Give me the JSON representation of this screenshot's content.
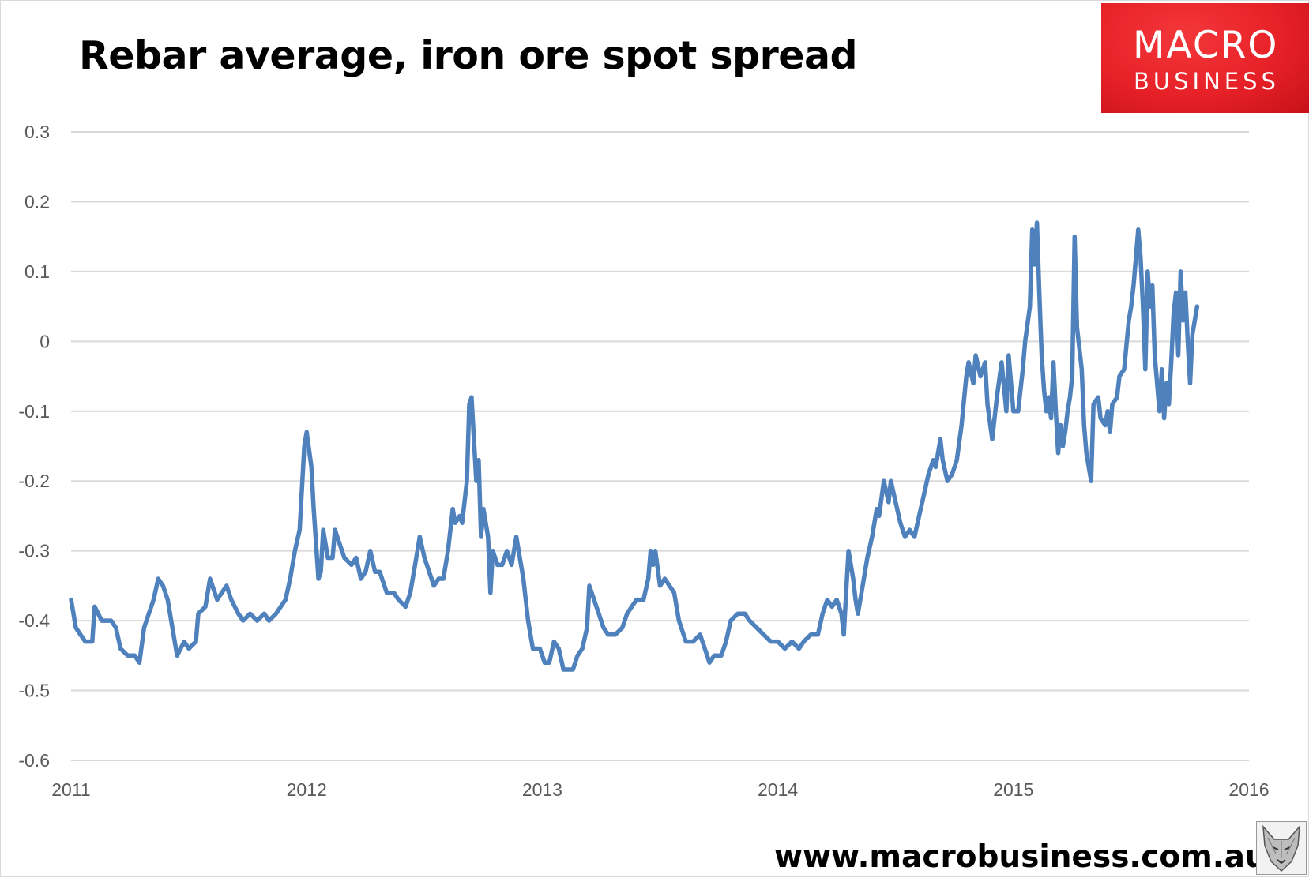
{
  "title": "Rebar average, iron ore spot spread",
  "logo": {
    "line1": "MACRO",
    "line2": "BUSINESS",
    "color": "#e62127"
  },
  "footer": {
    "url": "www.macrobusiness.com.au",
    "icon": "wolf-logo-icon"
  },
  "chart_data": {
    "type": "line",
    "title": "Rebar average, iron ore spot spread",
    "xlabel": "",
    "ylabel": "",
    "xlim": [
      2011,
      2016
    ],
    "ylim": [
      -0.6,
      0.3
    ],
    "x_ticks": [
      "2011",
      "2012",
      "2013",
      "2014",
      "2015",
      "2016"
    ],
    "y_ticks": [
      "0.3",
      "0.2",
      "0.1",
      "0",
      "-0.1",
      "-0.2",
      "-0.3",
      "-0.4",
      "-0.5",
      "-0.6"
    ],
    "grid": true,
    "legend": "none",
    "series_color": "#4f81bd",
    "series": [
      {
        "points": [
          [
            2011.0,
            -0.37
          ],
          [
            2011.02,
            -0.41
          ],
          [
            2011.04,
            -0.42
          ],
          [
            2011.06,
            -0.43
          ],
          [
            2011.09,
            -0.43
          ],
          [
            2011.1,
            -0.38
          ],
          [
            2011.13,
            -0.4
          ],
          [
            2011.17,
            -0.4
          ],
          [
            2011.19,
            -0.41
          ],
          [
            2011.21,
            -0.44
          ],
          [
            2011.24,
            -0.45
          ],
          [
            2011.27,
            -0.45
          ],
          [
            2011.29,
            -0.46
          ],
          [
            2011.31,
            -0.41
          ],
          [
            2011.33,
            -0.39
          ],
          [
            2011.35,
            -0.37
          ],
          [
            2011.37,
            -0.34
          ],
          [
            2011.39,
            -0.35
          ],
          [
            2011.41,
            -0.37
          ],
          [
            2011.43,
            -0.41
          ],
          [
            2011.45,
            -0.45
          ],
          [
            2011.48,
            -0.43
          ],
          [
            2011.5,
            -0.44
          ],
          [
            2011.53,
            -0.43
          ],
          [
            2011.54,
            -0.39
          ],
          [
            2011.57,
            -0.38
          ],
          [
            2011.59,
            -0.34
          ],
          [
            2011.62,
            -0.37
          ],
          [
            2011.64,
            -0.36
          ],
          [
            2011.66,
            -0.35
          ],
          [
            2011.68,
            -0.37
          ],
          [
            2011.71,
            -0.39
          ],
          [
            2011.73,
            -0.4
          ],
          [
            2011.76,
            -0.39
          ],
          [
            2011.79,
            -0.4
          ],
          [
            2011.82,
            -0.39
          ],
          [
            2011.84,
            -0.4
          ],
          [
            2011.87,
            -0.39
          ],
          [
            2011.89,
            -0.38
          ],
          [
            2011.91,
            -0.37
          ],
          [
            2011.93,
            -0.34
          ],
          [
            2011.95,
            -0.3
          ],
          [
            2011.97,
            -0.27
          ],
          [
            2011.99,
            -0.15
          ],
          [
            2012.0,
            -0.13
          ],
          [
            2012.02,
            -0.18
          ],
          [
            2012.03,
            -0.24
          ],
          [
            2012.05,
            -0.34
          ],
          [
            2012.06,
            -0.33
          ],
          [
            2012.07,
            -0.27
          ],
          [
            2012.09,
            -0.31
          ],
          [
            2012.11,
            -0.31
          ],
          [
            2012.12,
            -0.27
          ],
          [
            2012.14,
            -0.29
          ],
          [
            2012.16,
            -0.31
          ],
          [
            2012.19,
            -0.32
          ],
          [
            2012.21,
            -0.31
          ],
          [
            2012.23,
            -0.34
          ],
          [
            2012.25,
            -0.33
          ],
          [
            2012.27,
            -0.3
          ],
          [
            2012.29,
            -0.33
          ],
          [
            2012.31,
            -0.33
          ],
          [
            2012.34,
            -0.36
          ],
          [
            2012.37,
            -0.36
          ],
          [
            2012.39,
            -0.37
          ],
          [
            2012.42,
            -0.38
          ],
          [
            2012.44,
            -0.36
          ],
          [
            2012.47,
            -0.3
          ],
          [
            2012.48,
            -0.28
          ],
          [
            2012.5,
            -0.31
          ],
          [
            2012.52,
            -0.33
          ],
          [
            2012.54,
            -0.35
          ],
          [
            2012.56,
            -0.34
          ],
          [
            2012.58,
            -0.34
          ],
          [
            2012.6,
            -0.3
          ],
          [
            2012.62,
            -0.24
          ],
          [
            2012.63,
            -0.26
          ],
          [
            2012.65,
            -0.25
          ],
          [
            2012.66,
            -0.26
          ],
          [
            2012.68,
            -0.2
          ],
          [
            2012.69,
            -0.09
          ],
          [
            2012.7,
            -0.08
          ],
          [
            2012.72,
            -0.2
          ],
          [
            2012.73,
            -0.17
          ],
          [
            2012.74,
            -0.28
          ],
          [
            2012.75,
            -0.24
          ],
          [
            2012.77,
            -0.28
          ],
          [
            2012.78,
            -0.36
          ],
          [
            2012.79,
            -0.3
          ],
          [
            2012.81,
            -0.32
          ],
          [
            2012.83,
            -0.32
          ],
          [
            2012.85,
            -0.3
          ],
          [
            2012.87,
            -0.32
          ],
          [
            2012.89,
            -0.28
          ],
          [
            2012.92,
            -0.34
          ],
          [
            2012.94,
            -0.4
          ],
          [
            2012.96,
            -0.44
          ],
          [
            2012.99,
            -0.44
          ],
          [
            2013.01,
            -0.46
          ],
          [
            2013.03,
            -0.46
          ],
          [
            2013.05,
            -0.43
          ],
          [
            2013.07,
            -0.44
          ],
          [
            2013.09,
            -0.47
          ],
          [
            2013.11,
            -0.47
          ],
          [
            2013.13,
            -0.47
          ],
          [
            2013.15,
            -0.45
          ],
          [
            2013.17,
            -0.44
          ],
          [
            2013.19,
            -0.41
          ],
          [
            2013.2,
            -0.35
          ],
          [
            2013.22,
            -0.37
          ],
          [
            2013.24,
            -0.39
          ],
          [
            2013.26,
            -0.41
          ],
          [
            2013.28,
            -0.42
          ],
          [
            2013.31,
            -0.42
          ],
          [
            2013.34,
            -0.41
          ],
          [
            2013.36,
            -0.39
          ],
          [
            2013.38,
            -0.38
          ],
          [
            2013.4,
            -0.37
          ],
          [
            2013.43,
            -0.37
          ],
          [
            2013.45,
            -0.34
          ],
          [
            2013.46,
            -0.3
          ],
          [
            2013.47,
            -0.32
          ],
          [
            2013.48,
            -0.3
          ],
          [
            2013.5,
            -0.35
          ],
          [
            2013.52,
            -0.34
          ],
          [
            2013.54,
            -0.35
          ],
          [
            2013.56,
            -0.36
          ],
          [
            2013.58,
            -0.4
          ],
          [
            2013.61,
            -0.43
          ],
          [
            2013.64,
            -0.43
          ],
          [
            2013.67,
            -0.42
          ],
          [
            2013.69,
            -0.44
          ],
          [
            2013.71,
            -0.46
          ],
          [
            2013.73,
            -0.45
          ],
          [
            2013.76,
            -0.45
          ],
          [
            2013.78,
            -0.43
          ],
          [
            2013.8,
            -0.4
          ],
          [
            2013.83,
            -0.39
          ],
          [
            2013.86,
            -0.39
          ],
          [
            2013.88,
            -0.4
          ],
          [
            2013.91,
            -0.41
          ],
          [
            2013.94,
            -0.42
          ],
          [
            2013.97,
            -0.43
          ],
          [
            2014.0,
            -0.43
          ],
          [
            2014.03,
            -0.44
          ],
          [
            2014.06,
            -0.43
          ],
          [
            2014.09,
            -0.44
          ],
          [
            2014.11,
            -0.43
          ],
          [
            2014.14,
            -0.42
          ],
          [
            2014.17,
            -0.42
          ],
          [
            2014.19,
            -0.39
          ],
          [
            2014.21,
            -0.37
          ],
          [
            2014.23,
            -0.38
          ],
          [
            2014.25,
            -0.37
          ],
          [
            2014.27,
            -0.39
          ],
          [
            2014.28,
            -0.42
          ],
          [
            2014.3,
            -0.3
          ],
          [
            2014.32,
            -0.34
          ],
          [
            2014.33,
            -0.37
          ],
          [
            2014.34,
            -0.39
          ],
          [
            2014.36,
            -0.35
          ],
          [
            2014.38,
            -0.31
          ],
          [
            2014.4,
            -0.28
          ],
          [
            2014.42,
            -0.24
          ],
          [
            2014.43,
            -0.25
          ],
          [
            2014.45,
            -0.2
          ],
          [
            2014.47,
            -0.23
          ],
          [
            2014.48,
            -0.2
          ],
          [
            2014.5,
            -0.23
          ],
          [
            2014.52,
            -0.26
          ],
          [
            2014.54,
            -0.28
          ],
          [
            2014.56,
            -0.27
          ],
          [
            2014.58,
            -0.28
          ],
          [
            2014.6,
            -0.25
          ],
          [
            2014.62,
            -0.22
          ],
          [
            2014.64,
            -0.19
          ],
          [
            2014.66,
            -0.17
          ],
          [
            2014.67,
            -0.18
          ],
          [
            2014.69,
            -0.14
          ],
          [
            2014.7,
            -0.17
          ],
          [
            2014.72,
            -0.2
          ],
          [
            2014.74,
            -0.19
          ],
          [
            2014.76,
            -0.17
          ],
          [
            2014.78,
            -0.12
          ],
          [
            2014.8,
            -0.05
          ],
          [
            2014.81,
            -0.03
          ],
          [
            2014.83,
            -0.06
          ],
          [
            2014.84,
            -0.02
          ],
          [
            2014.86,
            -0.05
          ],
          [
            2014.88,
            -0.03
          ],
          [
            2014.89,
            -0.09
          ],
          [
            2014.91,
            -0.14
          ],
          [
            2014.93,
            -0.08
          ],
          [
            2014.95,
            -0.03
          ],
          [
            2014.97,
            -0.1
          ],
          [
            2014.98,
            -0.02
          ],
          [
            2015.0,
            -0.1
          ],
          [
            2015.02,
            -0.1
          ],
          [
            2015.04,
            -0.04
          ],
          [
            2015.05,
            0.0
          ],
          [
            2015.07,
            0.05
          ],
          [
            2015.08,
            0.16
          ],
          [
            2015.09,
            0.11
          ],
          [
            2015.1,
            0.17
          ],
          [
            2015.11,
            0.07
          ],
          [
            2015.12,
            -0.02
          ],
          [
            2015.13,
            -0.07
          ],
          [
            2015.14,
            -0.1
          ],
          [
            2015.15,
            -0.08
          ],
          [
            2015.16,
            -0.11
          ],
          [
            2015.17,
            -0.03
          ],
          [
            2015.18,
            -0.1
          ],
          [
            2015.19,
            -0.16
          ],
          [
            2015.2,
            -0.12
          ],
          [
            2015.21,
            -0.15
          ],
          [
            2015.22,
            -0.13
          ],
          [
            2015.23,
            -0.1
          ],
          [
            2015.24,
            -0.08
          ],
          [
            2015.25,
            -0.05
          ],
          [
            2015.26,
            0.15
          ],
          [
            2015.27,
            0.02
          ],
          [
            2015.28,
            -0.01
          ],
          [
            2015.29,
            -0.04
          ],
          [
            2015.3,
            -0.12
          ],
          [
            2015.31,
            -0.16
          ],
          [
            2015.32,
            -0.18
          ],
          [
            2015.33,
            -0.2
          ],
          [
            2015.34,
            -0.09
          ],
          [
            2015.36,
            -0.08
          ],
          [
            2015.37,
            -0.11
          ],
          [
            2015.39,
            -0.12
          ],
          [
            2015.4,
            -0.1
          ],
          [
            2015.41,
            -0.13
          ],
          [
            2015.42,
            -0.09
          ],
          [
            2015.44,
            -0.08
          ],
          [
            2015.45,
            -0.05
          ],
          [
            2015.47,
            -0.04
          ],
          [
            2015.49,
            0.03
          ],
          [
            2015.5,
            0.05
          ],
          [
            2015.51,
            0.08
          ],
          [
            2015.52,
            0.12
          ],
          [
            2015.53,
            0.16
          ],
          [
            2015.54,
            0.12
          ],
          [
            2015.55,
            0.05
          ],
          [
            2015.56,
            -0.04
          ],
          [
            2015.57,
            0.1
          ],
          [
            2015.58,
            0.05
          ],
          [
            2015.59,
            0.08
          ],
          [
            2015.6,
            -0.02
          ],
          [
            2015.61,
            -0.06
          ],
          [
            2015.62,
            -0.1
          ],
          [
            2015.63,
            -0.04
          ],
          [
            2015.64,
            -0.11
          ],
          [
            2015.65,
            -0.06
          ],
          [
            2015.66,
            -0.09
          ],
          [
            2015.67,
            -0.03
          ],
          [
            2015.68,
            0.04
          ],
          [
            2015.69,
            0.07
          ],
          [
            2015.7,
            -0.02
          ],
          [
            2015.71,
            0.1
          ],
          [
            2015.72,
            0.03
          ],
          [
            2015.73,
            0.07
          ],
          [
            2015.74,
            0.0
          ],
          [
            2015.75,
            -0.06
          ],
          [
            2015.76,
            0.01
          ],
          [
            2015.77,
            0.03
          ],
          [
            2015.78,
            0.05
          ]
        ]
      }
    ]
  }
}
